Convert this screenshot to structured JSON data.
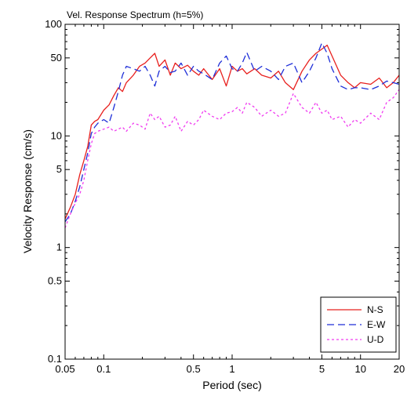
{
  "chart_data": {
    "type": "line",
    "title": "Vel. Response Spectrum (h=5%)",
    "xlabel": "Period (sec)",
    "ylabel": "Velocity Response (cm/s)",
    "xscale": "log",
    "yscale": "log",
    "xlim": [
      0.05,
      20
    ],
    "ylim": [
      0.1,
      100
    ],
    "x_ticks": [
      {
        "value": 0.05,
        "label": "0.05"
      },
      {
        "value": 0.1,
        "label": "0.1"
      },
      {
        "value": 0.5,
        "label": "0.5"
      },
      {
        "value": 1,
        "label": "1"
      },
      {
        "value": 5,
        "label": "5"
      },
      {
        "value": 10,
        "label": "10"
      },
      {
        "value": 20,
        "label": "20"
      }
    ],
    "y_ticks": [
      {
        "value": 0.1,
        "label": "0.1"
      },
      {
        "value": 0.5,
        "label": "0.5"
      },
      {
        "value": 1,
        "label": "1"
      },
      {
        "value": 5,
        "label": "5"
      },
      {
        "value": 10,
        "label": "10"
      },
      {
        "value": 50,
        "label": "50"
      },
      {
        "value": 100,
        "label": "100"
      }
    ],
    "grid": false,
    "legend_position": "bottom-right",
    "series": [
      {
        "name": "N-S",
        "color": "#e8201e",
        "dash": "solid",
        "x": [
          0.05,
          0.055,
          0.06,
          0.065,
          0.07,
          0.075,
          0.08,
          0.085,
          0.09,
          0.1,
          0.11,
          0.12,
          0.13,
          0.14,
          0.15,
          0.17,
          0.19,
          0.21,
          0.23,
          0.25,
          0.27,
          0.3,
          0.33,
          0.36,
          0.4,
          0.45,
          0.5,
          0.55,
          0.6,
          0.7,
          0.8,
          0.9,
          1.0,
          1.1,
          1.2,
          1.3,
          1.5,
          1.7,
          2.0,
          2.3,
          2.6,
          3.0,
          3.5,
          4.0,
          4.5,
          5.0,
          5.5,
          6.0,
          7.0,
          8.0,
          9.0,
          10.0,
          12.0,
          14.0,
          16.0,
          18.0,
          20.0
        ],
        "values": [
          1.8,
          2.3,
          3.0,
          4.5,
          6.0,
          8.0,
          12.5,
          13.5,
          14.0,
          17.0,
          19.0,
          23.0,
          27.0,
          25.0,
          30.0,
          35.0,
          42.0,
          45.0,
          50.0,
          55.0,
          42.0,
          48.0,
          35.0,
          45.0,
          40.0,
          43.0,
          38.0,
          35.0,
          40.0,
          32.0,
          40.0,
          28.0,
          42.0,
          38.0,
          40.0,
          36.0,
          40.0,
          35.0,
          33.0,
          38.0,
          30.0,
          26.0,
          38.0,
          48.0,
          55.0,
          60.0,
          65.0,
          52.0,
          35.0,
          30.0,
          27.0,
          30.0,
          29.0,
          33.0,
          27.0,
          30.0,
          35.0
        ]
      },
      {
        "name": "E-W",
        "color": "#1e2ed8",
        "dash": "long",
        "x": [
          0.05,
          0.055,
          0.06,
          0.065,
          0.07,
          0.075,
          0.08,
          0.085,
          0.09,
          0.1,
          0.11,
          0.12,
          0.13,
          0.14,
          0.15,
          0.17,
          0.19,
          0.21,
          0.23,
          0.25,
          0.27,
          0.3,
          0.33,
          0.36,
          0.4,
          0.45,
          0.5,
          0.55,
          0.6,
          0.7,
          0.8,
          0.9,
          1.0,
          1.1,
          1.2,
          1.3,
          1.5,
          1.7,
          2.0,
          2.3,
          2.6,
          3.0,
          3.5,
          4.0,
          4.5,
          5.0,
          5.5,
          6.0,
          7.0,
          8.0,
          9.0,
          10.0,
          12.0,
          14.0,
          16.0,
          18.0,
          20.0
        ],
        "values": [
          1.7,
          2.0,
          2.6,
          3.5,
          5.0,
          7.0,
          10.5,
          12.0,
          13.0,
          14.0,
          13.0,
          18.0,
          25.0,
          35.0,
          42.0,
          40.0,
          38.0,
          42.0,
          35.0,
          28.0,
          38.0,
          42.0,
          37.0,
          38.0,
          45.0,
          35.0,
          42.0,
          38.0,
          36.0,
          32.0,
          45.0,
          52.0,
          40.0,
          38.0,
          45.0,
          56.0,
          38.0,
          42.0,
          38.0,
          32.0,
          42.0,
          45.0,
          30.0,
          38.0,
          50.0,
          68.0,
          55.0,
          40.0,
          28.0,
          26.0,
          27.0,
          27.0,
          26.0,
          28.0,
          31.0,
          30.0,
          29.0
        ]
      },
      {
        "name": "U-D",
        "color": "#f03cf0",
        "dash": "short",
        "x": [
          0.05,
          0.055,
          0.06,
          0.065,
          0.07,
          0.075,
          0.08,
          0.085,
          0.09,
          0.1,
          0.11,
          0.12,
          0.13,
          0.14,
          0.15,
          0.17,
          0.19,
          0.21,
          0.23,
          0.25,
          0.27,
          0.3,
          0.33,
          0.36,
          0.4,
          0.45,
          0.5,
          0.55,
          0.6,
          0.7,
          0.8,
          0.9,
          1.0,
          1.1,
          1.2,
          1.3,
          1.5,
          1.7,
          2.0,
          2.3,
          2.6,
          3.0,
          3.5,
          4.0,
          4.5,
          5.0,
          5.5,
          6.0,
          7.0,
          8.0,
          9.0,
          10.0,
          12.0,
          14.0,
          16.0,
          18.0,
          20.0
        ],
        "values": [
          1.5,
          2.0,
          2.5,
          3.0,
          4.0,
          6.0,
          8.5,
          10.5,
          11.0,
          11.5,
          12.0,
          11.0,
          11.5,
          12.0,
          11.0,
          13.0,
          12.5,
          11.5,
          16.0,
          14.0,
          15.0,
          12.0,
          12.5,
          15.0,
          11.0,
          13.5,
          12.5,
          14.0,
          17.0,
          15.0,
          14.0,
          16.0,
          16.5,
          18.0,
          16.0,
          20.0,
          18.0,
          15.0,
          17.0,
          15.0,
          16.0,
          24.0,
          18.0,
          16.0,
          20.0,
          16.0,
          17.0,
          14.0,
          15.0,
          12.0,
          14.0,
          13.0,
          16.0,
          14.0,
          20.0,
          22.0,
          26.0
        ]
      }
    ]
  }
}
